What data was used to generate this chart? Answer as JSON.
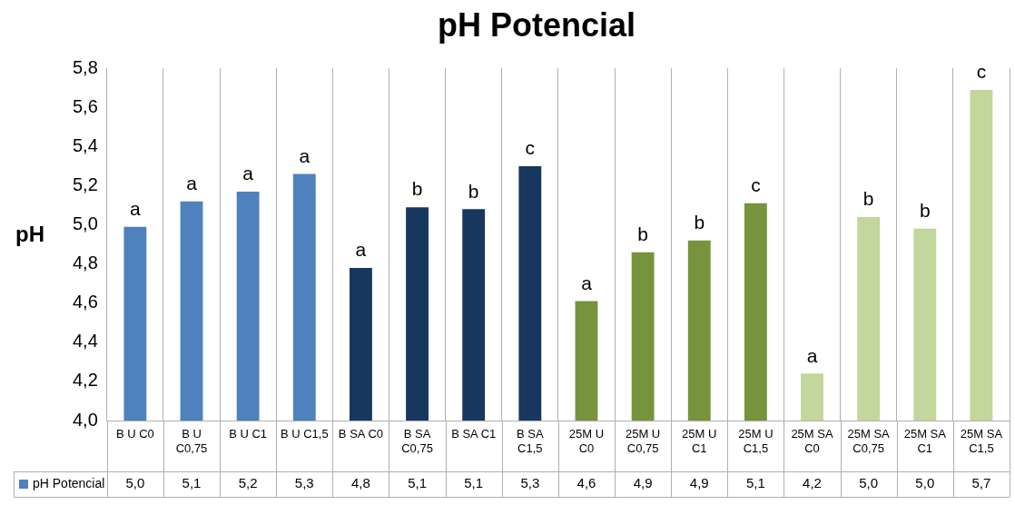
{
  "chart_data": {
    "type": "bar",
    "title": "pH Potencial",
    "ylabel": "pH",
    "categories": [
      "B U C0",
      "B U C0,75",
      "B U C1",
      "B U C1,5",
      "B SA C0",
      "B SA C0,75",
      "B SA C1",
      "B SA C1,5",
      "25M U C0",
      "25M U C0,75",
      "25M U C1",
      "25M U C1,5",
      "25M SA C0",
      "25M SA C0,75",
      "25M SA C1",
      "25M SA C1,5"
    ],
    "series": [
      {
        "name": "pH Potencial",
        "color": "#4f81bd",
        "colors": [
          "#4f81bd",
          "#4f81bd",
          "#4f81bd",
          "#4f81bd",
          "#17375e",
          "#17375e",
          "#17375e",
          "#17375e",
          "#77933c",
          "#77933c",
          "#77933c",
          "#77933c",
          "#c3d69b",
          "#c3d69b",
          "#c3d69b",
          "#c3d69b"
        ],
        "values": [
          4.99,
          5.12,
          5.17,
          5.26,
          4.78,
          5.09,
          5.08,
          5.3,
          4.61,
          4.86,
          4.92,
          5.11,
          4.24,
          5.04,
          4.98,
          5.69
        ],
        "value_labels": [
          "5,0",
          "5,1",
          "5,2",
          "5,3",
          "4,8",
          "5,1",
          "5,1",
          "5,3",
          "4,6",
          "4,9",
          "4,9",
          "5,1",
          "4,2",
          "5,0",
          "5,0",
          "5,7"
        ]
      }
    ],
    "ylim": [
      4.0,
      5.8
    ],
    "yticks": [
      {
        "value": 4.0,
        "label": "4,0"
      },
      {
        "value": 4.2,
        "label": "4,2"
      },
      {
        "value": 4.4,
        "label": "4,4"
      },
      {
        "value": 4.6,
        "label": "4,6"
      },
      {
        "value": 4.8,
        "label": "4,8"
      },
      {
        "value": 5.0,
        "label": "5,0"
      },
      {
        "value": 5.2,
        "label": "5,2"
      },
      {
        "value": 5.4,
        "label": "5,4"
      },
      {
        "value": 5.6,
        "label": "5,6"
      },
      {
        "value": 5.8,
        "label": "5,8"
      }
    ],
    "grid": "x",
    "legend": "bottom",
    "annotations": [
      {
        "text": "a",
        "x": "B U C0",
        "y": 4.99
      },
      {
        "text": "a",
        "x": "B U C0,75",
        "y": 5.12
      },
      {
        "text": "a",
        "x": "B U C1",
        "y": 5.17
      },
      {
        "text": "a",
        "x": "B U C1,5",
        "y": 5.26
      },
      {
        "text": "a",
        "x": "B SA C0",
        "y": 4.78
      },
      {
        "text": "b",
        "x": "B SA C0,75",
        "y": 5.09
      },
      {
        "text": "b",
        "x": "B SA C1",
        "y": 5.08
      },
      {
        "text": "c",
        "x": "B SA C1,5",
        "y": 5.3
      },
      {
        "text": "a",
        "x": "25M U C0",
        "y": 4.61
      },
      {
        "text": "b",
        "x": "25M U C0,75",
        "y": 4.86
      },
      {
        "text": "b",
        "x": "25M U C1",
        "y": 4.92
      },
      {
        "text": "c",
        "x": "25M U C1,5",
        "y": 5.11
      },
      {
        "text": "a",
        "x": "25M SA C0",
        "y": 4.24
      },
      {
        "text": "b",
        "x": "25M SA C0,75",
        "y": 5.04
      },
      {
        "text": "b",
        "x": "25M SA C1",
        "y": 4.98
      },
      {
        "text": "c",
        "x": "25M SA C1,5",
        "y": 5.69
      }
    ]
  }
}
